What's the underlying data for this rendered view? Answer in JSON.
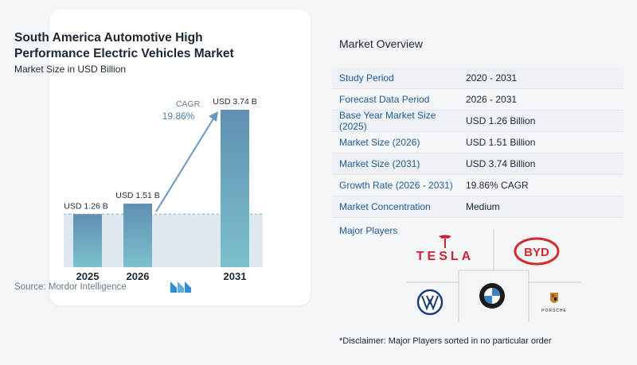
{
  "chart_data": {
    "type": "bar",
    "title": "South America Automotive High Performance Electric Vehicles Market",
    "subtitle": "Market Size in USD Billion",
    "categories": [
      "2025",
      "2026",
      "2031"
    ],
    "values": [
      1.26,
      1.51,
      3.74
    ],
    "data_labels": [
      "USD 1.26 B",
      "USD 1.51 B",
      "USD 3.74 B"
    ],
    "cagr_label": "CAGR",
    "cagr_value": "19.86%",
    "ylim": [
      0,
      3.74
    ],
    "colors": {
      "bar_top": "#5f8fb3",
      "bar_bottom": "#7cc1cc",
      "band": "#dde8f1",
      "arrow": "#6a97bd"
    }
  },
  "source": "Source: Mordor Intelligence",
  "overview": {
    "heading": "Market Overview",
    "rows": [
      {
        "label": "Study Period",
        "value": "2020 - 2031"
      },
      {
        "label": "Forecast Data Period",
        "value": "2026 - 2031"
      },
      {
        "label": "Base Year Market Size (2025)",
        "value": "USD 1.26 Billion"
      },
      {
        "label": "Market Size (2026)",
        "value": "USD 1.51 Billion"
      },
      {
        "label": "Market Size (2031)",
        "value": "USD 3.74 Billion"
      },
      {
        "label": "Growth Rate (2026 - 2031)",
        "value": "19.86% CAGR"
      },
      {
        "label": "Market Concentration",
        "value": "Medium"
      }
    ],
    "players_heading": "Major Players",
    "players": [
      "TESLA",
      "BYD",
      "Volkswagen",
      "BMW",
      "PORSCHE"
    ],
    "disclaimer": "*Disclaimer: Major Players sorted in no particular order"
  }
}
